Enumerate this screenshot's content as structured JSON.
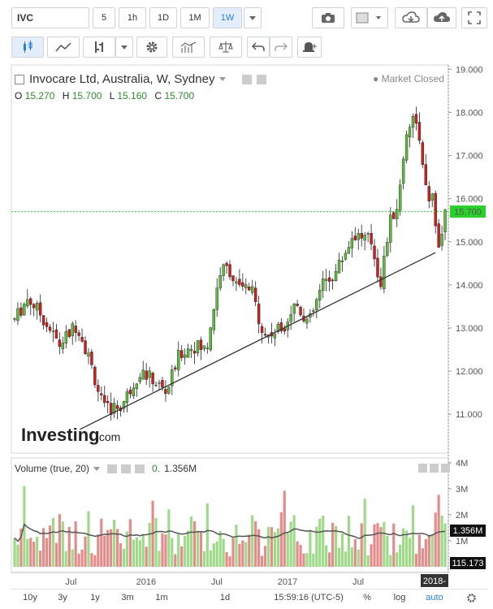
{
  "toolbar": {
    "symbol": "IVC",
    "intervals": [
      "5",
      "1h",
      "1D",
      "1M",
      "1W"
    ],
    "active_interval": "1W",
    "icons": [
      "candlestick-icon",
      "line-chart-icon",
      "bar-chart-icon",
      "gear-icon",
      "indicators-icon",
      "scale-icon",
      "undo-icon",
      "redo-icon",
      "alert-icon",
      "camera-icon",
      "color-square-icon",
      "cloud-download-icon",
      "cloud-upload-icon",
      "fullscreen-icon"
    ]
  },
  "legend": {
    "title": "Invocare Ltd, Australia, W, Sydney",
    "status": "Market Closed",
    "o_label": "O",
    "o": "15.270",
    "h_label": "H",
    "h": "15.700",
    "l_label": "L",
    "l": "15.160",
    "c_label": "C",
    "c": "15.700"
  },
  "volume_legend": {
    "title": "Volume (true, 20)",
    "value_prefix": "0.",
    "value": "1.356M"
  },
  "watermark": {
    "brand": "Investing",
    "suffix": ".com"
  },
  "price_axis_badge": "15.700",
  "volume_axis_badge": "1.356M",
  "volume_axis_badge2": "115.173",
  "date_badge": "2018-",
  "bottom": {
    "ranges": [
      "10y",
      "3y",
      "1y",
      "3m",
      "1m",
      "1d"
    ],
    "time": "15:59:16 (UTC-5)",
    "percent": "%",
    "log": "log",
    "auto": "auto"
  },
  "colors": {
    "up": "#5dba3c",
    "down": "#c8201e",
    "vol_up": "#9fd98a",
    "vol_down": "#e28c8c",
    "accent": "#2a7fd4",
    "badge": "#2bd12b"
  },
  "chart_data": [
    {
      "type": "candlestick",
      "title": "Invocare Ltd, Australia, W, Sydney",
      "x_ticks": [
        "Jul",
        "2016",
        "Jul",
        "2017",
        "Jul",
        "2018"
      ],
      "y_ticks": [
        "11.000",
        "12.000",
        "13.000",
        "14.000",
        "15.000",
        "16.000",
        "17.000",
        "18.000",
        "19.000"
      ],
      "ylim": [
        10.1,
        19.1
      ],
      "last_price": 15.7,
      "trendline": {
        "from": [
          0.155,
          10.65
        ],
        "to": [
          0.96,
          14.75
        ]
      },
      "waypoints": [
        [
          0.0,
          13.2
        ],
        [
          0.03,
          13.7
        ],
        [
          0.06,
          13.3
        ],
        [
          0.1,
          12.6
        ],
        [
          0.14,
          13.1
        ],
        [
          0.17,
          12.2
        ],
        [
          0.2,
          11.1
        ],
        [
          0.24,
          11.2
        ],
        [
          0.28,
          12.0
        ],
        [
          0.31,
          11.8
        ],
        [
          0.34,
          11.5
        ],
        [
          0.37,
          12.4
        ],
        [
          0.4,
          12.6
        ],
        [
          0.43,
          12.5
        ],
        [
          0.46,
          14.3
        ],
        [
          0.48,
          14.4
        ],
        [
          0.5,
          13.9
        ],
        [
          0.53,
          13.9
        ],
        [
          0.56,
          12.8
        ],
        [
          0.6,
          13.0
        ],
        [
          0.63,
          13.6
        ],
        [
          0.66,
          13.1
        ],
        [
          0.69,
          14.0
        ],
        [
          0.72,
          14.3
        ],
        [
          0.76,
          15.2
        ],
        [
          0.8,
          15.0
        ],
        [
          0.82,
          14.0
        ],
        [
          0.84,
          15.4
        ],
        [
          0.86,
          15.9
        ],
        [
          0.88,
          17.7
        ],
        [
          0.9,
          17.9
        ],
        [
          0.92,
          16.2
        ],
        [
          0.94,
          15.9
        ],
        [
          0.95,
          14.7
        ],
        [
          0.965,
          15.7
        ]
      ]
    },
    {
      "type": "bar",
      "title": "Volume (true, 20)",
      "y_ticks": [
        "1M",
        "1.356M",
        "2M",
        "3M",
        "4M"
      ],
      "ylim": [
        0,
        4.0
      ],
      "ma_last": 1.356
    }
  ]
}
